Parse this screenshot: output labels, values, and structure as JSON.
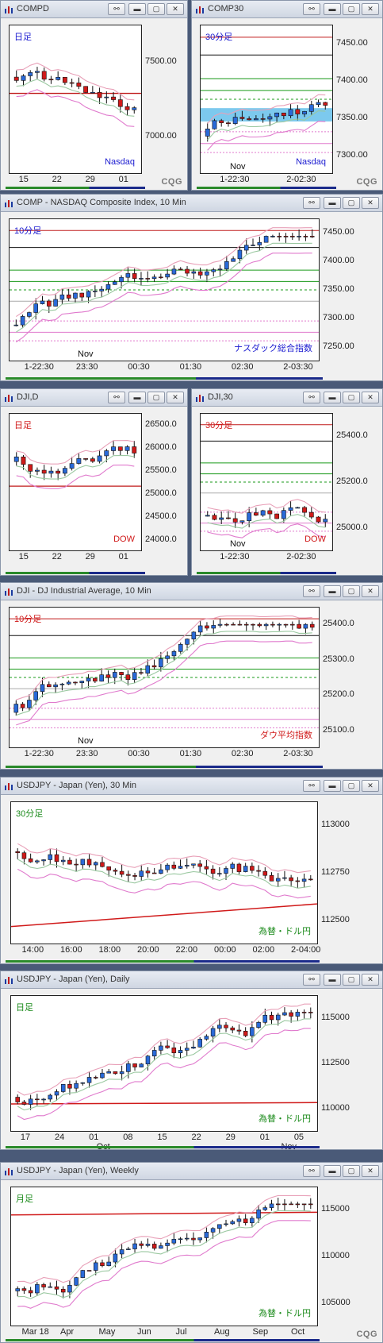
{
  "panels": [
    {
      "title": "COMPD",
      "label": "日足",
      "label_color": "#1a1ad0",
      "note": "Nasdaq",
      "note_color": "#1a1ad0",
      "y_ticks": [
        "7500.00",
        "7000.00"
      ],
      "x_ticks": [
        "15",
        "22",
        "29",
        "01"
      ],
      "cqg": true
    },
    {
      "title": "COMP30",
      "label": "30分足",
      "label_color": "#1a1ad0",
      "note": "Nasdaq",
      "note_color": "#1a1ad0",
      "y_ticks": [
        "7450.00",
        "7400.00",
        "7350.00",
        "7300.00"
      ],
      "x_ticks": [
        "1-22:30",
        "2-02:30"
      ],
      "month_label": "Nov",
      "cqg": true
    },
    {
      "title": "COMP - NASDAQ Composite Index, 10 Min",
      "label": "10分足",
      "label_color": "#1a1ad0",
      "note": "ナスダック総合指数",
      "note_color": "#1a1ad0",
      "y_ticks": [
        "7450.00",
        "7400.00",
        "7350.00",
        "7300.00",
        "7250.00"
      ],
      "x_ticks": [
        "1-22:30",
        "23:30",
        "00:30",
        "01:30",
        "02:30",
        "2-03:30"
      ],
      "month_label": "Nov",
      "cqg": false
    },
    {
      "title": "DJI,D",
      "label": "日足",
      "label_color": "#d01a1a",
      "note": "DOW",
      "note_color": "#d01a1a",
      "y_ticks": [
        "26500.0",
        "26000.0",
        "25500.0",
        "25000.0",
        "24500.0",
        "24000.0"
      ],
      "x_ticks": [
        "15",
        "22",
        "29",
        "01"
      ],
      "cqg": false
    },
    {
      "title": "DJI,30",
      "label": "30分足",
      "label_color": "#d01a1a",
      "note": "DOW",
      "note_color": "#d01a1a",
      "y_ticks": [
        "25400.0",
        "25200.0",
        "25000.0"
      ],
      "x_ticks": [
        "1-22:30",
        "2-02:30"
      ],
      "month_label": "Nov",
      "cqg": false
    },
    {
      "title": "DJI - DJ Industrial Average, 10 Min",
      "label": "10分足",
      "label_color": "#d01a1a",
      "note": "ダウ平均指数",
      "note_color": "#d01a1a",
      "y_ticks": [
        "25400.0",
        "25300.0",
        "25200.0",
        "25100.0"
      ],
      "x_ticks": [
        "1-22:30",
        "23:30",
        "00:30",
        "01:30",
        "02:30",
        "2-03:30"
      ],
      "month_label": "Nov",
      "cqg": false
    },
    {
      "title": "USDJPY - Japan (Yen), 30 Min",
      "label": "30分足",
      "label_color": "#1a8a1a",
      "note": "為替・ドル円",
      "note_color": "#1a8a1a",
      "y_ticks": [
        "113000",
        "112750",
        "112500"
      ],
      "x_ticks": [
        "14:00",
        "16:00",
        "18:00",
        "20:00",
        "22:00",
        "00:00",
        "02:00",
        "2-04:00"
      ],
      "cqg": false
    },
    {
      "title": "USDJPY - Japan (Yen), Daily",
      "label": "日足",
      "label_color": "#1a8a1a",
      "note": "為替・ドル円",
      "note_color": "#1a8a1a",
      "y_ticks": [
        "115000",
        "112500",
        "110000"
      ],
      "x_ticks": [
        "17",
        "24",
        "01",
        "08",
        "15",
        "22",
        "29",
        "01",
        "05"
      ],
      "sub_ticks": [
        "Oct",
        "Nov"
      ],
      "cqg": false
    },
    {
      "title": "USDJPY - Japan (Yen), Weekly",
      "label": "月足",
      "label_color": "#1a8a1a",
      "note": "為替・ドル円",
      "note_color": "#1a8a1a",
      "y_ticks": [
        "115000",
        "110000",
        "105000"
      ],
      "x_ticks": [
        "Mar 18",
        "Apr",
        "May",
        "Jun",
        "Jul",
        "Aug",
        "Sep",
        "Oct"
      ],
      "cqg": true
    }
  ],
  "window_buttons": {
    "link": "⚯",
    "min": "▬",
    "max": "▢",
    "close": "✕"
  },
  "cqg_text": "CQG"
}
